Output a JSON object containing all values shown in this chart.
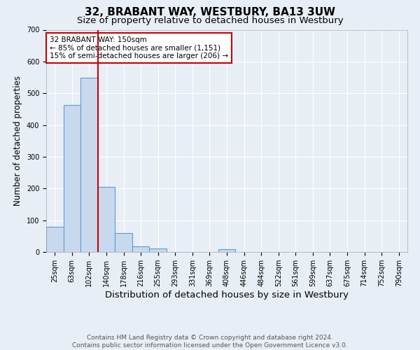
{
  "title": "32, BRABANT WAY, WESTBURY, BA13 3UW",
  "subtitle": "Size of property relative to detached houses in Westbury",
  "xlabel": "Distribution of detached houses by size in Westbury",
  "ylabel": "Number of detached properties",
  "bar_labels": [
    "25sqm",
    "63sqm",
    "102sqm",
    "140sqm",
    "178sqm",
    "216sqm",
    "255sqm",
    "293sqm",
    "331sqm",
    "369sqm",
    "408sqm",
    "446sqm",
    "484sqm",
    "522sqm",
    "561sqm",
    "599sqm",
    "637sqm",
    "675sqm",
    "714sqm",
    "752sqm",
    "790sqm"
  ],
  "bar_values": [
    80,
    463,
    549,
    205,
    60,
    18,
    10,
    0,
    0,
    0,
    8,
    0,
    0,
    0,
    0,
    0,
    0,
    0,
    0,
    0,
    0
  ],
  "bar_color": "#c8d9ed",
  "bar_edge_color": "#5b9bd5",
  "property_line_x": 3,
  "property_line_color": "#cc0000",
  "annotation_text": "32 BRABANT WAY: 150sqm\n← 85% of detached houses are smaller (1,151)\n15% of semi-detached houses are larger (206) →",
  "annotation_box_color": "white",
  "annotation_box_edge_color": "#cc0000",
  "ylim": [
    0,
    700
  ],
  "yticks": [
    0,
    100,
    200,
    300,
    400,
    500,
    600,
    700
  ],
  "bg_color": "#e8eef5",
  "plot_bg_color": "#e8eef5",
  "grid_color": "white",
  "footer_text": "Contains HM Land Registry data © Crown copyright and database right 2024.\nContains public sector information licensed under the Open Government Licence v3.0.",
  "title_fontsize": 11,
  "subtitle_fontsize": 9.5,
  "xlabel_fontsize": 9.5,
  "ylabel_fontsize": 8.5,
  "tick_fontsize": 7,
  "annotation_fontsize": 7.5,
  "footer_fontsize": 6.5
}
